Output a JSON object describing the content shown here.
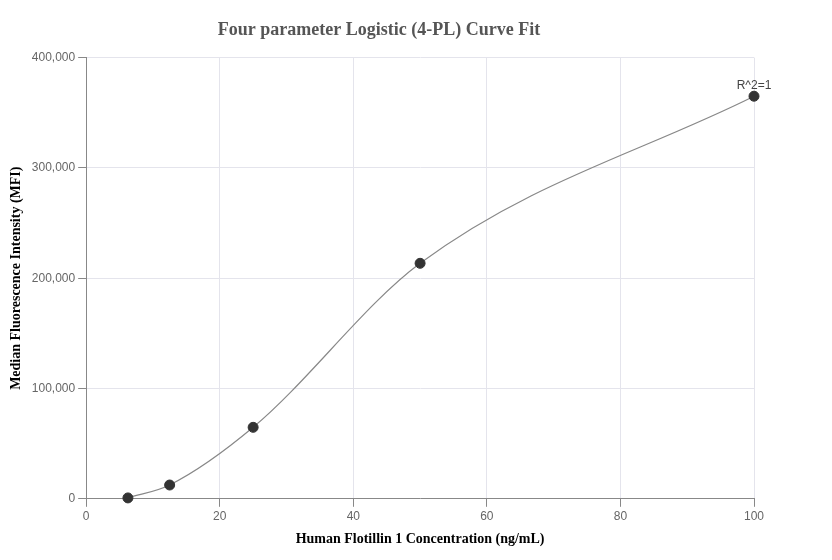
{
  "chart_data": {
    "type": "scatter",
    "title": "Four parameter Logistic (4-PL) Curve Fit",
    "x_label": "Human Flotillin 1 Concentration (ng/mL)",
    "y_label": "Median Fluorescence Intensity (MFI)",
    "x": [
      6.25,
      12.5,
      25,
      50,
      100
    ],
    "series": [
      {
        "values": [
          800,
          12500,
          64800,
          213500,
          365000
        ],
        "color": "#888888",
        "marker": "circle",
        "line_style": "solid"
      }
    ],
    "xlim": [
      0,
      100
    ],
    "xticks": [
      0,
      20,
      40,
      60,
      80,
      100
    ],
    "ylim": [
      0,
      400000
    ],
    "yticks": [
      0,
      {
        "value": 100000,
        "label": "100,000"
      },
      {
        "value": 200000,
        "label": "200,000"
      },
      {
        "value": 300000,
        "label": "300,000"
      },
      {
        "value": 400000,
        "label": "400,000"
      }
    ],
    "grid": true,
    "annotations": [
      {
        "text": "R^2=1",
        "x": 100,
        "y": 365000
      }
    ]
  }
}
